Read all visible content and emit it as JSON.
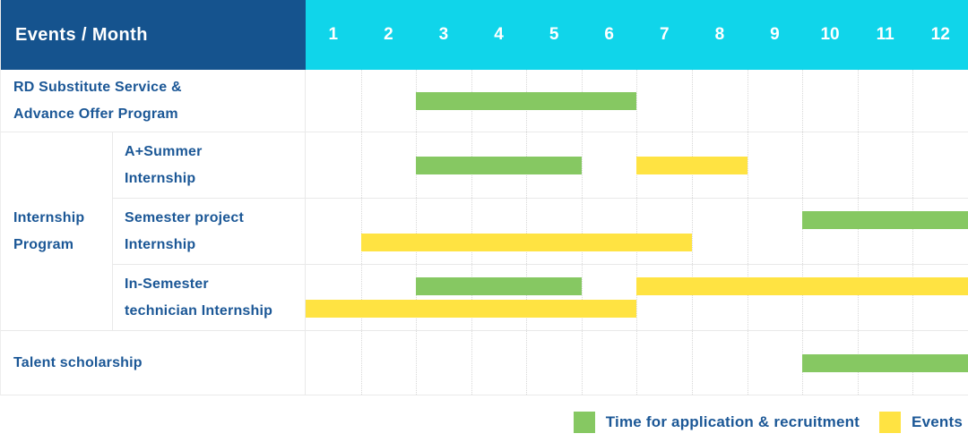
{
  "header": {
    "label": "Events / Month",
    "months": [
      "1",
      "2",
      "3",
      "4",
      "5",
      "6",
      "7",
      "8",
      "9",
      "10",
      "11",
      "12"
    ]
  },
  "colors": {
    "header_bg": "#15538e",
    "months_bg": "#10d5ea",
    "label_text": "#1b5796",
    "green": "#86c862",
    "yellow": "#ffe342"
  },
  "group": {
    "label": "Internship Program",
    "lines": [
      "Internship",
      "Program"
    ]
  },
  "legend": [
    {
      "key": "green",
      "label": "Time for application & recruitment"
    },
    {
      "key": "yellow",
      "label": "Events"
    }
  ],
  "chart_data": {
    "type": "bar",
    "subtype": "gantt-timeline",
    "title": "Events / Month",
    "x_ticks": [
      "1",
      "2",
      "3",
      "4",
      "5",
      "6",
      "7",
      "8",
      "9",
      "10",
      "11",
      "12"
    ],
    "x_range": [
      1,
      12
    ],
    "grid": "dotted-vertical-month-lines",
    "legend_position": "bottom-right",
    "series_legend": {
      "green": "Time for application & recruitment",
      "yellow": "Events"
    },
    "rows": [
      {
        "label": "RD Substitute Service & Advance Offer Program",
        "lines": [
          "RD Substitute Service &",
          "Advance Offer Program"
        ],
        "group": null,
        "lanes": [
          [
            {
              "series": "green",
              "start": 3,
              "end": 6
            }
          ]
        ]
      },
      {
        "label": "A+Summer Internship",
        "lines": [
          "A+Summer",
          "Internship"
        ],
        "group": "Internship Program",
        "lanes": [
          [
            {
              "series": "green",
              "start": 3,
              "end": 5
            },
            {
              "series": "yellow",
              "start": 7,
              "end": 8
            }
          ]
        ]
      },
      {
        "label": "Semester project Internship",
        "lines": [
          "Semester project",
          "Internship"
        ],
        "group": "Internship Program",
        "lanes": [
          [
            {
              "series": "green",
              "start": 10,
              "end": 12
            }
          ],
          [
            {
              "series": "yellow",
              "start": 2,
              "end": 7
            }
          ]
        ]
      },
      {
        "label": "In-Semester technician Internship",
        "lines": [
          "In-Semester",
          "technician Internship"
        ],
        "group": "Internship Program",
        "lanes": [
          [
            {
              "series": "green",
              "start": 3,
              "end": 5
            },
            {
              "series": "yellow",
              "start": 7,
              "end": 12
            }
          ],
          [
            {
              "series": "yellow",
              "start": 1,
              "end": 6
            }
          ]
        ]
      },
      {
        "label": "Talent scholarship",
        "lines": [
          "Talent scholarship"
        ],
        "group": null,
        "lanes": [
          [
            {
              "series": "green",
              "start": 10,
              "end": 12
            }
          ]
        ]
      }
    ]
  }
}
